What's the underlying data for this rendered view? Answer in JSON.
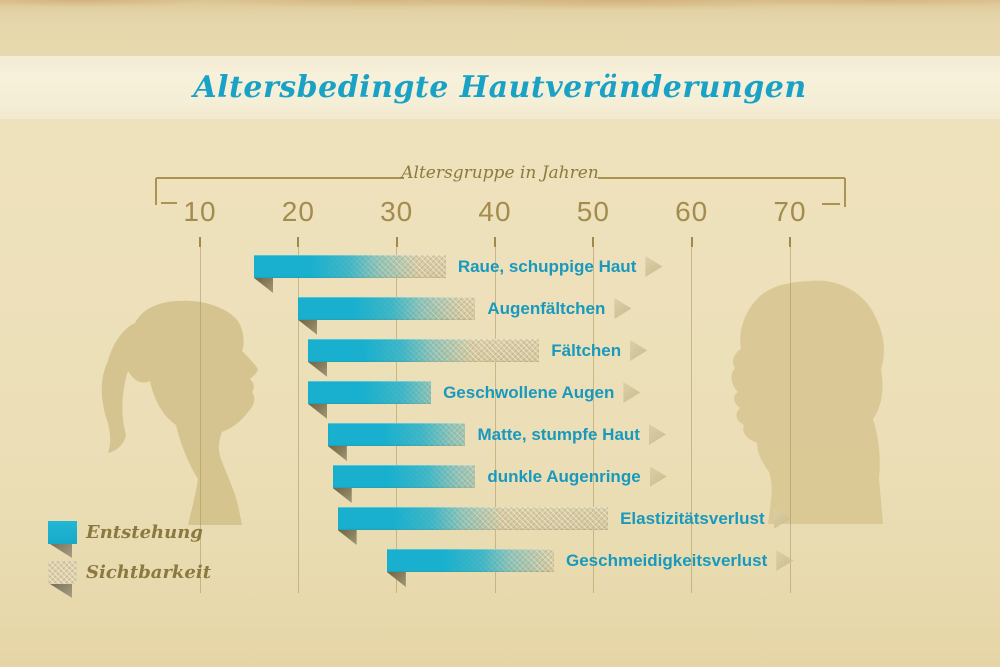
{
  "title": "Altersbedingte Hautveränderungen",
  "axis": {
    "label": "Altersgruppe in Jahren"
  },
  "legend": {
    "items": [
      {
        "label": "Entstehung",
        "swatch": "solid-cyan"
      },
      {
        "label": "Sichtbarkeit",
        "swatch": "textured-beige"
      }
    ]
  },
  "colors": {
    "accent_teal_title": "#1aa2c6",
    "bar_label_teal": "#1899bd",
    "bar_cyan": "#18b0ce",
    "bar_texture_beige": "#d8cba3",
    "axis_gold": "#a38c4e",
    "legend_text_olive": "#8b7940",
    "fold_triangle": "#8a7f5d",
    "arrow_beige": "#d2c39a",
    "background_parchment": "#ecdfb8",
    "title_band_cream": "#f6efd8",
    "silhouette_tan": "#d6c38e"
  },
  "chart_data": {
    "type": "bar",
    "orientation": "horizontal-range",
    "title": "Altersbedingte Hautveränderungen",
    "xlabel": "Altersgruppe in Jahren",
    "x_ticks": [
      10,
      20,
      30,
      40,
      50,
      60,
      70
    ],
    "xlim": [
      10,
      70
    ],
    "grid": "vertical-decade-lines",
    "legend_entries": [
      "Entstehung",
      "Sichtbarkeit"
    ],
    "legend_meaning": "bar left cyan segment = Entstehung (onset), right textured segment = Sichtbarkeit (visibility)",
    "items": [
      {
        "label": "Raue, schuppige Haut",
        "start_age": 15.5,
        "end_age": 35
      },
      {
        "label": "Augenfältchen",
        "start_age": 20,
        "end_age": 38
      },
      {
        "label": "Fältchen",
        "start_age": 21,
        "end_age": 44.5
      },
      {
        "label": "Geschwollene Augen",
        "start_age": 21,
        "end_age": 33.5
      },
      {
        "label": "Matte, stumpfe Haut",
        "start_age": 23,
        "end_age": 37
      },
      {
        "label": "dunkle Augenringe",
        "start_age": 23.5,
        "end_age": 38
      },
      {
        "label": "Elastizitätsverlust",
        "start_age": 24,
        "end_age": 51.5
      },
      {
        "label": "Geschmeidigkeitsverlust",
        "start_age": 29,
        "end_age": 46
      }
    ]
  }
}
